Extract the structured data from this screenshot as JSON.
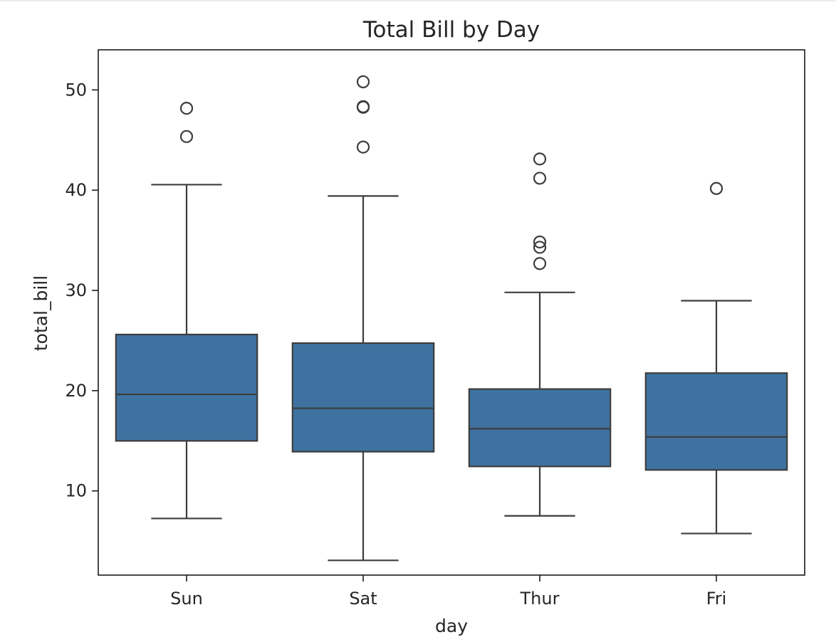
{
  "chart_data": {
    "type": "box",
    "title": "Total Bill by Day",
    "xlabel": "day",
    "ylabel": "total_bill",
    "categories": [
      "Sun",
      "Sat",
      "Thur",
      "Fri"
    ],
    "ylim": [
      1.6,
      54.0
    ],
    "yticks": [
      10,
      20,
      30,
      40,
      50
    ],
    "grid": false,
    "box_color": "#3f72a0",
    "line_color": "#3d3d3d",
    "boxes": [
      {
        "category": "Sun",
        "whisker_low": 7.25,
        "q1": 14.99,
        "median": 19.63,
        "q3": 25.6,
        "whisker_high": 40.55,
        "outliers": [
          45.35,
          48.17
        ]
      },
      {
        "category": "Sat",
        "whisker_low": 3.07,
        "q1": 13.91,
        "median": 18.24,
        "q3": 24.74,
        "whisker_high": 39.42,
        "outliers": [
          44.3,
          48.27,
          48.33,
          50.81
        ]
      },
      {
        "category": "Thur",
        "whisker_low": 7.51,
        "q1": 12.44,
        "median": 16.2,
        "q3": 20.16,
        "whisker_high": 29.8,
        "outliers": [
          32.68,
          34.3,
          34.83,
          41.19,
          43.11
        ]
      },
      {
        "category": "Fri",
        "whisker_low": 5.75,
        "q1": 12.09,
        "median": 15.38,
        "q3": 21.75,
        "whisker_high": 28.97,
        "outliers": [
          40.17
        ]
      }
    ]
  }
}
